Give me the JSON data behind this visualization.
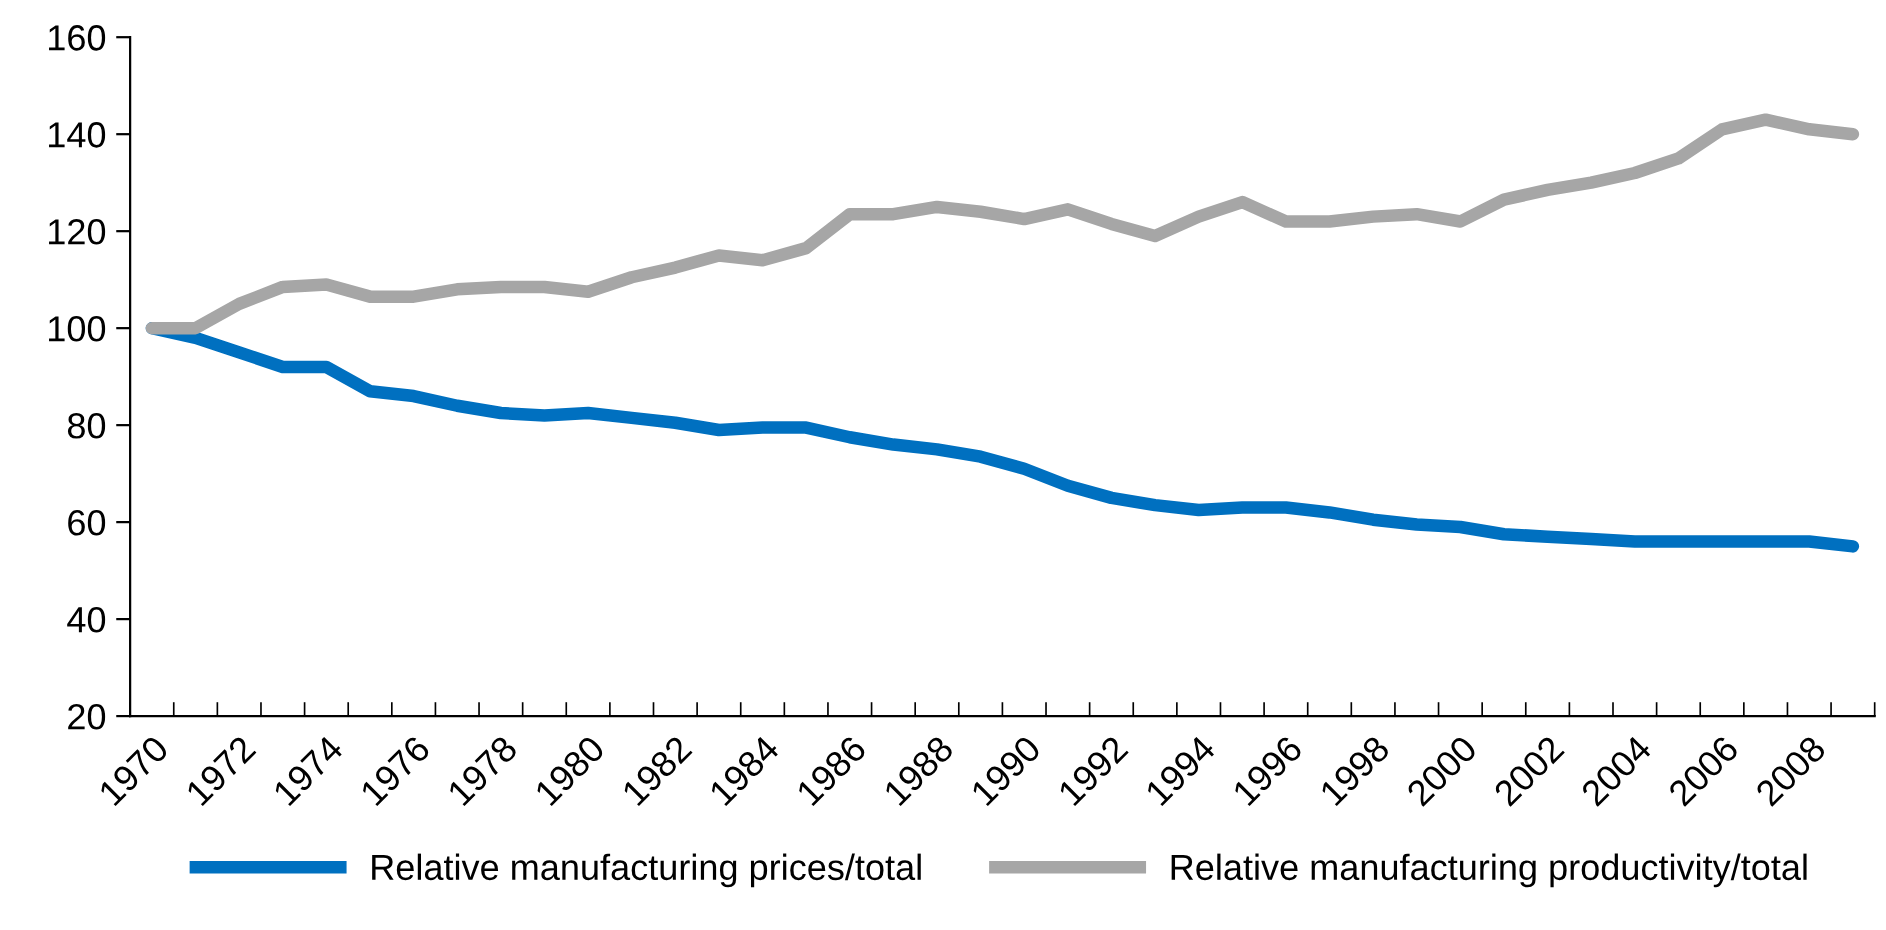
{
  "chart_data": {
    "type": "line",
    "categories": [
      "1970",
      null,
      "1972",
      null,
      "1974",
      null,
      "1976",
      null,
      "1978",
      null,
      "1980",
      null,
      "1982",
      null,
      "1984",
      null,
      "1986",
      null,
      "1988",
      null,
      "1990",
      null,
      "1992",
      null,
      "1994",
      null,
      "1996",
      null,
      "1998",
      null,
      "2000",
      null,
      "2002",
      null,
      "2004",
      null,
      "2006",
      null,
      "2008",
      null
    ],
    "series": [
      {
        "name": "Relative manufacturing prices/total",
        "color": "#0070c0",
        "values": [
          100,
          98,
          95,
          92,
          92,
          87,
          86,
          84,
          82.5,
          82,
          82.5,
          81.5,
          80.5,
          79,
          79.5,
          79.5,
          77.5,
          76,
          75,
          73.5,
          71,
          67.5,
          65,
          63.5,
          62.5,
          63,
          63,
          62,
          60.5,
          59.5,
          59,
          57.5,
          57,
          56.5,
          56,
          56,
          56,
          56,
          56,
          55
        ]
      },
      {
        "name": "Relative manufacturing productivity/total",
        "color": "#a6a6a6",
        "values": [
          100,
          100,
          105,
          108.5,
          109,
          106.5,
          106.5,
          108,
          108.5,
          108.5,
          107.5,
          110.5,
          112.5,
          115,
          114,
          116.5,
          123.5,
          123.5,
          125,
          124,
          122.5,
          124.5,
          121.5,
          119,
          123,
          126,
          122,
          122,
          123,
          123.5,
          122,
          126.5,
          128.5,
          130,
          132,
          135,
          141,
          143,
          141,
          140
        ]
      }
    ],
    "ylim": [
      20,
      160
    ],
    "yticks": [
      20,
      40,
      60,
      80,
      100,
      120,
      140,
      160
    ],
    "grid": false,
    "legend": "bottom",
    "marker": "none",
    "line_style": "solid"
  }
}
